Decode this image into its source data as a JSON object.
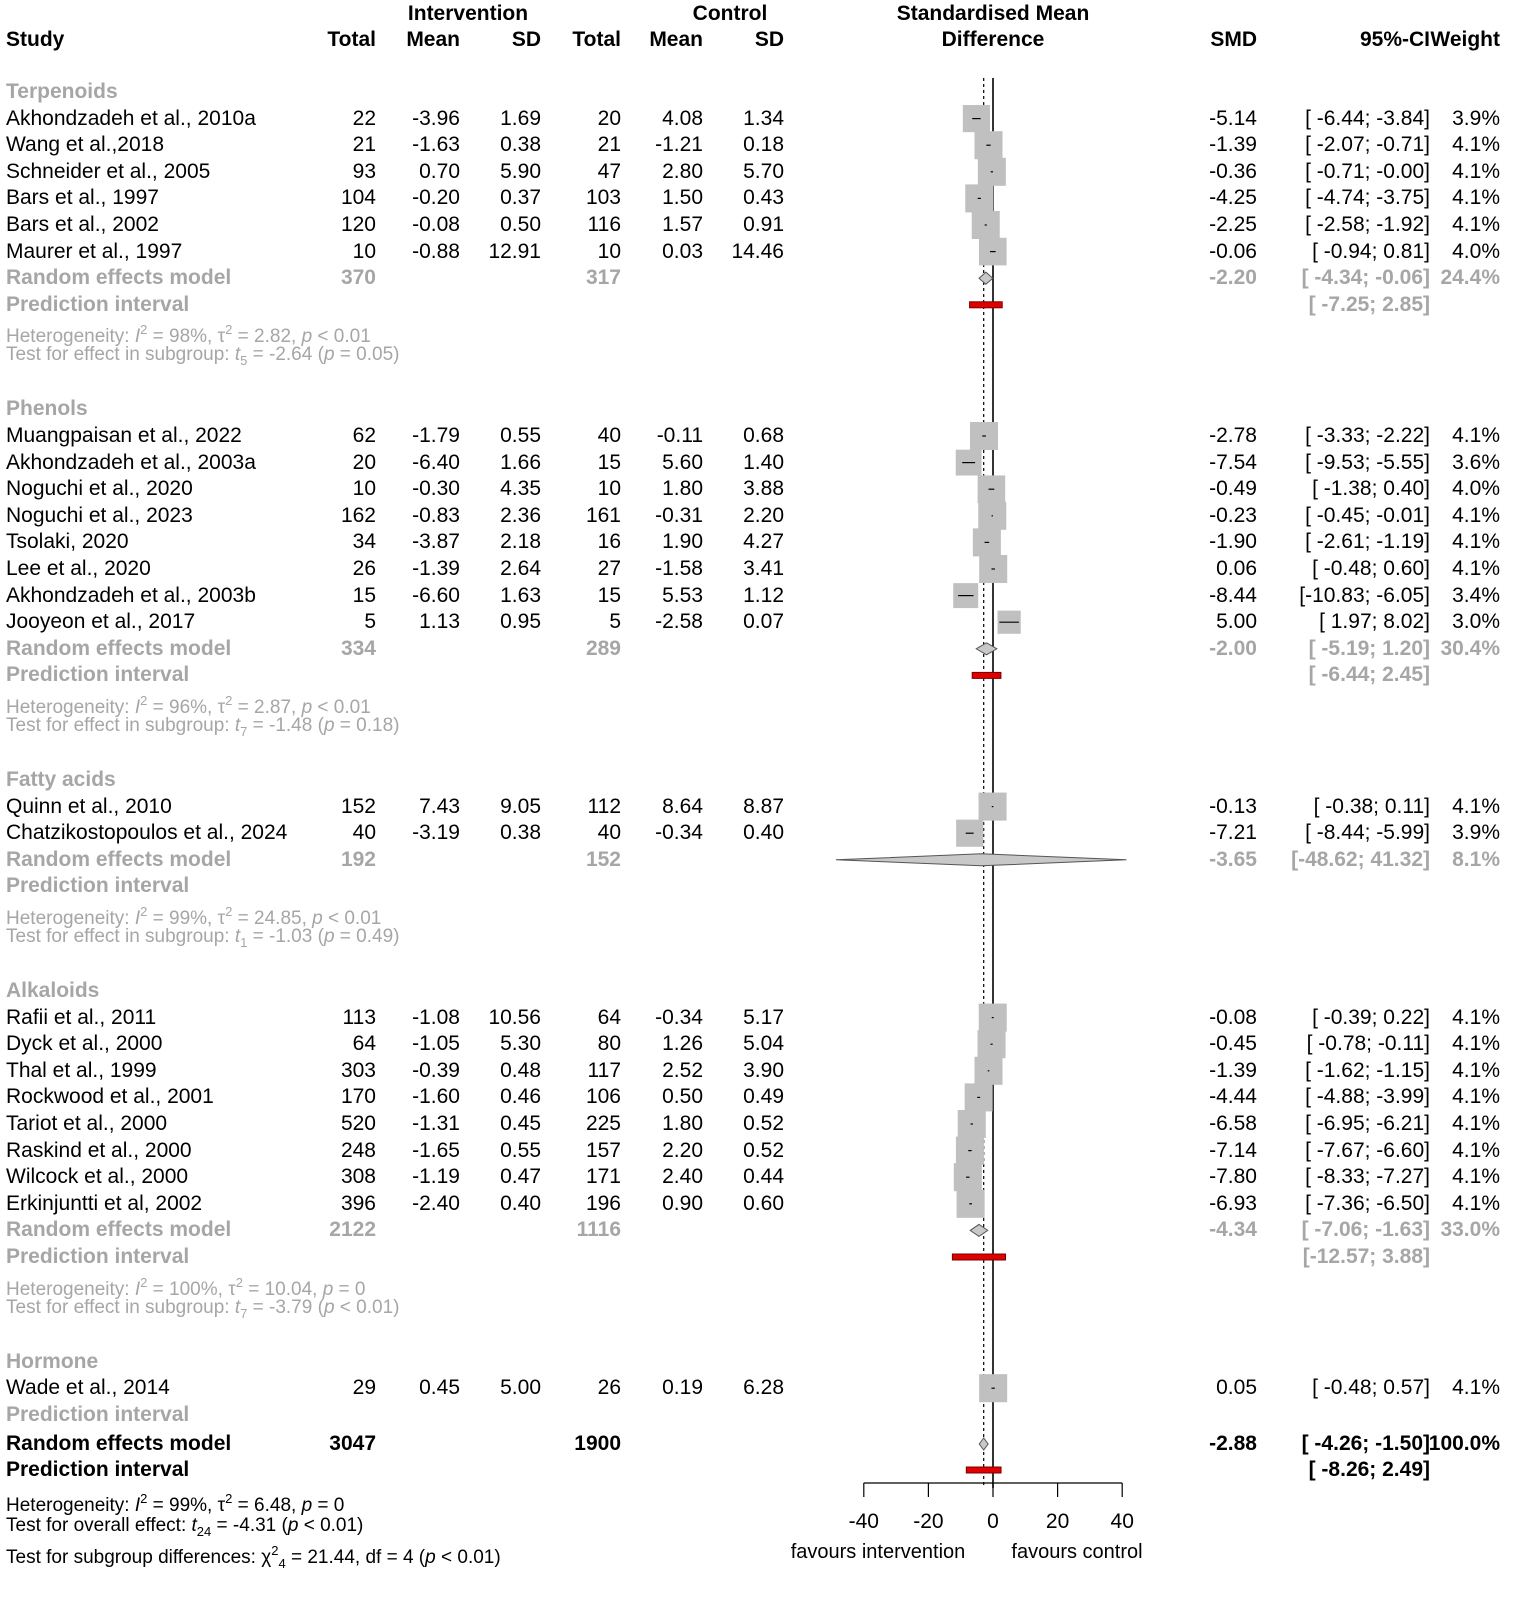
{
  "header": {
    "intervention": "Intervention",
    "control": "Control",
    "smd_title_1": "Standardised Mean",
    "smd_title_2": "Difference",
    "study": "Study",
    "total": "Total",
    "mean": "Mean",
    "sd": "SD",
    "smd": "SMD",
    "ci": "95%-CI",
    "weight": "Weight"
  },
  "chart_data": {
    "type": "forest",
    "title": "Standardised Mean Difference",
    "xlim": [
      -40,
      40
    ],
    "xticks": [
      "-40",
      "-20",
      "0",
      "20",
      "40"
    ],
    "xtick_values": [
      -40,
      -20,
      0,
      20,
      40
    ],
    "left_label": "favours intervention",
    "right_label": "favours control",
    "pooled_smd": -2.88,
    "pooled_ci": [
      -4.26,
      -1.5
    ],
    "pooled_pi": [
      -8.26,
      2.49
    ],
    "groups": [
      {
        "name": "Terpenoids",
        "studies": [
          {
            "name": "Akhondzadeh et al., 2010a",
            "it": "22",
            "im": "-3.96",
            "isd": "1.69",
            "ct": "20",
            "cm": "4.08",
            "csd": "1.34",
            "smd": "-5.14",
            "ci": "[ -6.44; -3.84]",
            "w": "3.9%",
            "v": -5.14,
            "lo": -6.44,
            "hi": -3.84,
            "wt": 3.9
          },
          {
            "name": "Wang et al.,2018",
            "it": "21",
            "im": "-1.63",
            "isd": "0.38",
            "ct": "21",
            "cm": "-1.21",
            "csd": "0.18",
            "smd": "-1.39",
            "ci": "[ -2.07; -0.71]",
            "w": "4.1%",
            "v": -1.39,
            "lo": -2.07,
            "hi": -0.71,
            "wt": 4.1
          },
          {
            "name": "Schneider et al., 2005",
            "it": "93",
            "im": "0.70",
            "isd": "5.90",
            "ct": "47",
            "cm": "2.80",
            "csd": "5.70",
            "smd": "-0.36",
            "ci": "[ -0.71; -0.00]",
            "w": "4.1%",
            "v": -0.36,
            "lo": -0.71,
            "hi": 0.0,
            "wt": 4.1
          },
          {
            "name": "Bars et al., 1997",
            "it": "104",
            "im": "-0.20",
            "isd": "0.37",
            "ct": "103",
            "cm": "1.50",
            "csd": "0.43",
            "smd": "-4.25",
            "ci": "[ -4.74; -3.75]",
            "w": "4.1%",
            "v": -4.25,
            "lo": -4.74,
            "hi": -3.75,
            "wt": 4.1
          },
          {
            "name": "Bars et al., 2002",
            "it": "120",
            "im": "-0.08",
            "isd": "0.50",
            "ct": "116",
            "cm": "1.57",
            "csd": "0.91",
            "smd": "-2.25",
            "ci": "[ -2.58; -1.92]",
            "w": "4.1%",
            "v": -2.25,
            "lo": -2.58,
            "hi": -1.92,
            "wt": 4.1
          },
          {
            "name": "Maurer et al., 1997",
            "it": "10",
            "im": "-0.88",
            "isd": "12.91",
            "ct": "10",
            "cm": "0.03",
            "csd": "14.46",
            "smd": "-0.06",
            "ci": "[ -0.94; 0.81]",
            "w": "4.0%",
            "v": -0.06,
            "lo": -0.94,
            "hi": 0.81,
            "wt": 4.0
          }
        ],
        "re": {
          "label": "Random effects model",
          "it": "370",
          "ct": "317",
          "smd": "-2.20",
          "ci": "[ -4.34; -0.06]",
          "w": "24.4%",
          "v": -2.2,
          "lo": -4.34,
          "hi": -0.06
        },
        "pi": {
          "label": "Prediction interval",
          "ci": "[ -7.25; 2.85]",
          "lo": -7.25,
          "hi": 2.85
        },
        "het": {
          "pre": "Heterogeneity: ",
          "I": "I",
          "sup": "2",
          "mid": " = 98%, ",
          "tau": "τ",
          "tausup": "2",
          "rest": " = 2.82, ",
          "p": "p",
          "end": " < 0.01"
        },
        "test": {
          "pre": "Test for effect in subgroup: ",
          "t": "t",
          "sub": "5",
          "mid": " = -2.64 (",
          "p": "p",
          "end": " = 0.05)"
        }
      },
      {
        "name": "Phenols",
        "studies": [
          {
            "name": "Muangpaisan et al., 2022",
            "it": "62",
            "im": "-1.79",
            "isd": "0.55",
            "ct": "40",
            "cm": "-0.11",
            "csd": "0.68",
            "smd": "-2.78",
            "ci": "[ -3.33; -2.22]",
            "w": "4.1%",
            "v": -2.78,
            "lo": -3.33,
            "hi": -2.22,
            "wt": 4.1
          },
          {
            "name": "Akhondzadeh et al., 2003a",
            "it": "20",
            "im": "-6.40",
            "isd": "1.66",
            "ct": "15",
            "cm": "5.60",
            "csd": "1.40",
            "smd": "-7.54",
            "ci": "[ -9.53; -5.55]",
            "w": "3.6%",
            "v": -7.54,
            "lo": -9.53,
            "hi": -5.55,
            "wt": 3.6
          },
          {
            "name": "Noguchi et al., 2020",
            "it": "10",
            "im": "-0.30",
            "isd": "4.35",
            "ct": "10",
            "cm": "1.80",
            "csd": "3.88",
            "smd": "-0.49",
            "ci": "[ -1.38; 0.40]",
            "w": "4.0%",
            "v": -0.49,
            "lo": -1.38,
            "hi": 0.4,
            "wt": 4.0
          },
          {
            "name": "Noguchi et al., 2023",
            "it": "162",
            "im": "-0.83",
            "isd": "2.36",
            "ct": "161",
            "cm": "-0.31",
            "csd": "2.20",
            "smd": "-0.23",
            "ci": "[ -0.45; -0.01]",
            "w": "4.1%",
            "v": -0.23,
            "lo": -0.45,
            "hi": -0.01,
            "wt": 4.1
          },
          {
            "name": "Tsolaki, 2020",
            "it": "34",
            "im": "-3.87",
            "isd": "2.18",
            "ct": "16",
            "cm": "1.90",
            "csd": "4.27",
            "smd": "-1.90",
            "ci": "[ -2.61; -1.19]",
            "w": "4.1%",
            "v": -1.9,
            "lo": -2.61,
            "hi": -1.19,
            "wt": 4.1
          },
          {
            "name": "Lee et al., 2020",
            "it": "26",
            "im": "-1.39",
            "isd": "2.64",
            "ct": "27",
            "cm": "-1.58",
            "csd": "3.41",
            "smd": "0.06",
            "ci": "[ -0.48; 0.60]",
            "w": "4.1%",
            "v": 0.06,
            "lo": -0.48,
            "hi": 0.6,
            "wt": 4.1
          },
          {
            "name": "Akhondzadeh et al., 2003b",
            "it": "15",
            "im": "-6.60",
            "isd": "1.63",
            "ct": "15",
            "cm": "5.53",
            "csd": "1.12",
            "smd": "-8.44",
            "ci": "[-10.83; -6.05]",
            "w": "3.4%",
            "v": -8.44,
            "lo": -10.83,
            "hi": -6.05,
            "wt": 3.4
          },
          {
            "name": "Jooyeon et al., 2017",
            "it": "5",
            "im": "1.13",
            "isd": "0.95",
            "ct": "5",
            "cm": "-2.58",
            "csd": "0.07",
            "smd": "5.00",
            "ci": "[ 1.97; 8.02]",
            "w": "3.0%",
            "v": 5.0,
            "lo": 1.97,
            "hi": 8.02,
            "wt": 3.0
          }
        ],
        "re": {
          "label": "Random effects model",
          "it": "334",
          "ct": "289",
          "smd": "-2.00",
          "ci": "[ -5.19; 1.20]",
          "w": "30.4%",
          "v": -2.0,
          "lo": -5.19,
          "hi": 1.2
        },
        "pi": {
          "label": "Prediction interval",
          "ci": "[ -6.44; 2.45]",
          "lo": -6.44,
          "hi": 2.45
        },
        "het": {
          "pre": "Heterogeneity: ",
          "I": "I",
          "sup": "2",
          "mid": " = 96%, ",
          "tau": "τ",
          "tausup": "2",
          "rest": " = 2.87, ",
          "p": "p",
          "end": " < 0.01"
        },
        "test": {
          "pre": "Test for effect in subgroup: ",
          "t": "t",
          "sub": "7",
          "mid": " = -1.48 (",
          "p": "p",
          "end": " = 0.18)"
        }
      },
      {
        "name": "Fatty acids",
        "studies": [
          {
            "name": "Quinn et al., 2010",
            "it": "152",
            "im": "7.43",
            "isd": "9.05",
            "ct": "112",
            "cm": "8.64",
            "csd": "8.87",
            "smd": "-0.13",
            "ci": "[ -0.38; 0.11]",
            "w": "4.1%",
            "v": -0.13,
            "lo": -0.38,
            "hi": 0.11,
            "wt": 4.1
          },
          {
            "name": "Chatzikostopoulos et al., 2024",
            "it": "40",
            "im": "-3.19",
            "isd": "0.38",
            "ct": "40",
            "cm": "-0.34",
            "csd": "0.40",
            "smd": "-7.21",
            "ci": "[ -8.44; -5.99]",
            "w": "3.9%",
            "v": -7.21,
            "lo": -8.44,
            "hi": -5.99,
            "wt": 3.9
          }
        ],
        "re": {
          "label": "Random effects model",
          "it": "192",
          "ct": "152",
          "smd": "-3.65",
          "ci": "[-48.62; 41.32]",
          "w": "8.1%",
          "v": -3.65,
          "lo": -48.62,
          "hi": 41.32
        },
        "pi": {
          "label": "Prediction interval",
          "ci": "",
          "lo": null,
          "hi": null
        },
        "het": {
          "pre": "Heterogeneity: ",
          "I": "I",
          "sup": "2",
          "mid": " = 99%, ",
          "tau": "τ",
          "tausup": "2",
          "rest": " = 24.85, ",
          "p": "p",
          "end": " < 0.01"
        },
        "test": {
          "pre": "Test for effect in subgroup: ",
          "t": "t",
          "sub": "1",
          "mid": " = -1.03 (",
          "p": "p",
          "end": " = 0.49)"
        }
      },
      {
        "name": "Alkaloids",
        "studies": [
          {
            "name": "Rafii et al., 2011",
            "it": "113",
            "im": "-1.08",
            "isd": "10.56",
            "ct": "64",
            "cm": "-0.34",
            "csd": "5.17",
            "smd": "-0.08",
            "ci": "[ -0.39; 0.22]",
            "w": "4.1%",
            "v": -0.08,
            "lo": -0.39,
            "hi": 0.22,
            "wt": 4.1
          },
          {
            "name": "Dyck et al., 2000",
            "it": "64",
            "im": "-1.05",
            "isd": "5.30",
            "ct": "80",
            "cm": "1.26",
            "csd": "5.04",
            "smd": "-0.45",
            "ci": "[ -0.78; -0.11]",
            "w": "4.1%",
            "v": -0.45,
            "lo": -0.78,
            "hi": -0.11,
            "wt": 4.1
          },
          {
            "name": "Thal et al., 1999",
            "it": "303",
            "im": "-0.39",
            "isd": "0.48",
            "ct": "117",
            "cm": "2.52",
            "csd": "3.90",
            "smd": "-1.39",
            "ci": "[ -1.62; -1.15]",
            "w": "4.1%",
            "v": -1.39,
            "lo": -1.62,
            "hi": -1.15,
            "wt": 4.1
          },
          {
            "name": "Rockwood et al., 2001",
            "it": "170",
            "im": "-1.60",
            "isd": "0.46",
            "ct": "106",
            "cm": "0.50",
            "csd": "0.49",
            "smd": "-4.44",
            "ci": "[ -4.88; -3.99]",
            "w": "4.1%",
            "v": -4.44,
            "lo": -4.88,
            "hi": -3.99,
            "wt": 4.1
          },
          {
            "name": "Tariot et al., 2000",
            "it": "520",
            "im": "-1.31",
            "isd": "0.45",
            "ct": "225",
            "cm": "1.80",
            "csd": "0.52",
            "smd": "-6.58",
            "ci": "[ -6.95; -6.21]",
            "w": "4.1%",
            "v": -6.58,
            "lo": -6.95,
            "hi": -6.21,
            "wt": 4.1
          },
          {
            "name": "Raskind et al., 2000",
            "it": "248",
            "im": "-1.65",
            "isd": "0.55",
            "ct": "157",
            "cm": "2.20",
            "csd": "0.52",
            "smd": "-7.14",
            "ci": "[ -7.67; -6.60]",
            "w": "4.1%",
            "v": -7.14,
            "lo": -7.67,
            "hi": -6.6,
            "wt": 4.1
          },
          {
            "name": "Wilcock et al., 2000",
            "it": "308",
            "im": "-1.19",
            "isd": "0.47",
            "ct": "171",
            "cm": "2.40",
            "csd": "0.44",
            "smd": "-7.80",
            "ci": "[ -8.33; -7.27]",
            "w": "4.1%",
            "v": -7.8,
            "lo": -8.33,
            "hi": -7.27,
            "wt": 4.1
          },
          {
            "name": "Erkinjuntti et al, 2002",
            "it": "396",
            "im": "-2.40",
            "isd": "0.40",
            "ct": "196",
            "cm": "0.90",
            "csd": "0.60",
            "smd": "-6.93",
            "ci": "[ -7.36; -6.50]",
            "w": "4.1%",
            "v": -6.93,
            "lo": -7.36,
            "hi": -6.5,
            "wt": 4.1
          }
        ],
        "re": {
          "label": "Random effects model",
          "it": "2122",
          "ct": "1116",
          "smd": "-4.34",
          "ci": "[ -7.06; -1.63]",
          "w": "33.0%",
          "v": -4.34,
          "lo": -7.06,
          "hi": -1.63
        },
        "pi": {
          "label": "Prediction interval",
          "ci": "[-12.57; 3.88]",
          "lo": -12.57,
          "hi": 3.88
        },
        "het": {
          "pre": "Heterogeneity: ",
          "I": "I",
          "sup": "2",
          "mid": " = 100%, ",
          "tau": "τ",
          "tausup": "2",
          "rest": " = 10.04, ",
          "p": "p",
          "end": " = 0"
        },
        "test": {
          "pre": "Test for effect in subgroup: ",
          "t": "t",
          "sub": "7",
          "mid": " = -3.79 (",
          "p": "p",
          "end": " < 0.01)"
        }
      },
      {
        "name": "Hormone",
        "studies": [
          {
            "name": "Wade et al., 2014",
            "it": "29",
            "im": "0.45",
            "isd": "5.00",
            "ct": "26",
            "cm": "0.19",
            "csd": "6.28",
            "smd": "0.05",
            "ci": "[ -0.48; 0.57]",
            "w": "4.1%",
            "v": 0.05,
            "lo": -0.48,
            "hi": 0.57,
            "wt": 4.1
          }
        ],
        "re": null,
        "pi": {
          "label": "Prediction interval",
          "ci": "",
          "lo": null,
          "hi": null
        },
        "het": null,
        "test": null
      }
    ],
    "overall": {
      "label": "Random effects model",
      "it": "3047",
      "ct": "1900",
      "smd": "-2.88",
      "ci": "[ -4.26; -1.50]",
      "w": "100.0%",
      "pi_label": "Prediction interval",
      "pi_ci": "[ -8.26; 2.49]"
    },
    "footer": {
      "het": {
        "pre": "Heterogeneity: ",
        "I": "I",
        "sup": "2",
        "mid": " = 99%, ",
        "tau": "τ",
        "tausup": "2",
        "rest": " = 6.48, ",
        "p": "p",
        "end": " = 0"
      },
      "test": {
        "pre": "Test for overall effect: ",
        "t": "t",
        "sub": "24",
        "mid": " = -4.31 (",
        "p": "p",
        "end": " < 0.01)"
      },
      "sub": {
        "pre": "Test for subgroup differences: ",
        "chi": "χ",
        "sup": "2",
        "sub": "4",
        "rest": " = 21.44, df = 4 (",
        "p": "p",
        "end": " < 0.01)"
      }
    }
  }
}
